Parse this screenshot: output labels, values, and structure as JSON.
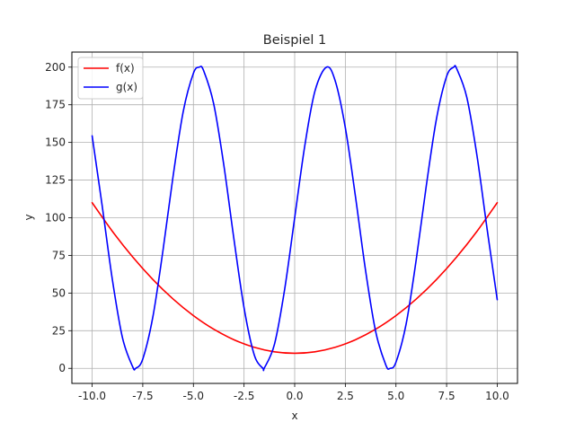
{
  "chart_data": {
    "type": "line",
    "title": "Beispiel 1",
    "xlabel": "x",
    "ylabel": "y",
    "xlim": [
      -11,
      11
    ],
    "ylim": [
      -10,
      210
    ],
    "x_ticks": [
      -10.0,
      -7.5,
      -5.0,
      -2.5,
      0.0,
      2.5,
      5.0,
      7.5,
      10.0
    ],
    "x_tick_labels": [
      "-10.0",
      "-7.5",
      "-5.0",
      "-2.5",
      "0.0",
      "2.5",
      "5.0",
      "7.5",
      "10.0"
    ],
    "y_ticks": [
      0,
      25,
      50,
      75,
      100,
      125,
      150,
      175,
      200
    ],
    "y_tick_labels": [
      "0",
      "25",
      "50",
      "75",
      "100",
      "125",
      "150",
      "175",
      "200"
    ],
    "grid": true,
    "legend_position": "top-left",
    "series": [
      {
        "name": "f(x)",
        "color": "#ff0000",
        "x": [
          -10,
          -9,
          -8,
          -7,
          -6,
          -5,
          -4,
          -3,
          -2,
          -1,
          0,
          1,
          2,
          3,
          4,
          5,
          6,
          7,
          8,
          9,
          10
        ],
        "y": [
          110,
          91,
          74,
          59,
          46,
          35,
          26,
          19,
          14,
          11,
          10,
          11,
          14,
          19,
          26,
          35,
          46,
          59,
          74,
          91,
          110
        ]
      },
      {
        "name": "g(x)",
        "color": "#0000ff",
        "x": [
          -10,
          -9.5,
          -9,
          -8.5,
          -8,
          -7.85,
          -7.5,
          -7,
          -6.5,
          -6,
          -5.5,
          -5,
          -4.71,
          -4.5,
          -4,
          -3.5,
          -3,
          -2.5,
          -2,
          -1.57,
          -1.5,
          -1,
          -0.5,
          0,
          0.5,
          1,
          1.57,
          2,
          2.5,
          3,
          3.5,
          4,
          4.5,
          4.71,
          5,
          5.5,
          6,
          6.5,
          7,
          7.5,
          7.85,
          8,
          8.5,
          9,
          9.5,
          10
        ],
        "y": [
          154.4,
          107.5,
          58.8,
          20.2,
          1.1,
          0,
          6.2,
          34.3,
          78.5,
          127.9,
          170.7,
          195.9,
          200,
          197.8,
          175.7,
          135.1,
          85.9,
          40.2,
          9.1,
          0,
          0.2,
          15.9,
          52.1,
          100,
          147.9,
          184.1,
          200,
          190.9,
          159.8,
          114.1,
          64.9,
          24.3,
          2.2,
          0,
          4.1,
          29.3,
          72.1,
          121.5,
          165.7,
          193.8,
          200,
          198.9,
          179.8,
          141.2,
          92.5,
          45.6
        ]
      }
    ]
  }
}
